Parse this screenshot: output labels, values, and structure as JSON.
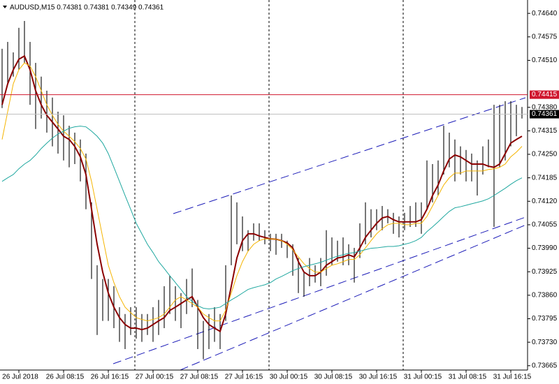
{
  "chart_data": {
    "type": "ohlc",
    "title": "AUDUSD,M15  0.74381 0.74381 0.74349 0.74361",
    "categories": [
      null,
      null,
      null,
      "26 Jul 2018",
      null,
      null,
      null,
      null,
      null,
      null,
      null,
      "26 Jul 08:15",
      null,
      null,
      null,
      null,
      null,
      null,
      null,
      "26 Jul 16:15",
      null,
      null,
      null,
      null,
      null,
      null,
      null,
      "27 Jul 00:15",
      null,
      null,
      null,
      null,
      null,
      null,
      null,
      "27 Jul 08:15",
      null,
      null,
      null,
      null,
      null,
      null,
      null,
      "27 Jul 16:15",
      null,
      null,
      null,
      null,
      null,
      null,
      null,
      "30 Jul 00:15",
      null,
      null,
      null,
      null,
      null,
      null,
      null,
      "30 Jul 08:15",
      null,
      null,
      null,
      null,
      null,
      null,
      null,
      "30 Jul 16:15",
      null,
      null,
      null,
      null,
      null,
      null,
      null,
      "31 Jul 00:15",
      null,
      null,
      null,
      null,
      null,
      null,
      null,
      "31 Jul 08:15",
      null,
      null,
      null,
      null,
      null,
      null,
      null,
      "31 Jul 16:15",
      null,
      null
    ],
    "high": [
      0.74542,
      0.74561,
      0.74532,
      0.746,
      0.74619,
      0.74561,
      0.74503,
      0.74465,
      0.74426,
      0.74407,
      0.74368,
      0.74358,
      0.74329,
      0.7431,
      0.74291,
      0.74252,
      0.74117,
      0.73943,
      0.73905,
      0.73905,
      0.73885,
      0.73827,
      0.73808,
      0.73827,
      0.73827,
      0.73808,
      0.73808,
      0.73827,
      0.73847,
      0.73885,
      0.73914,
      0.73885,
      0.73866,
      0.73905,
      0.73934,
      0.73847,
      0.73789,
      0.73808,
      0.73827,
      0.73808,
      0.73943,
      0.74136,
      0.74117,
      0.74078,
      0.7404,
      0.74059,
      0.74059,
      0.7404,
      0.7403,
      0.7403,
      0.7403,
      0.74011,
      0.74001,
      0.73963,
      0.73924,
      0.73963,
      0.73943,
      0.73963,
      0.7404,
      0.7402,
      0.74011,
      0.7402,
      0.74001,
      0.73991,
      0.74059,
      0.74117,
      0.74098,
      0.74098,
      0.74107,
      0.74098,
      0.74088,
      0.74078,
      0.74088,
      0.74107,
      0.74117,
      0.74117,
      0.74233,
      0.74223,
      0.74233,
      0.74329,
      0.7431,
      0.74291,
      0.74272,
      0.74262,
      0.74252,
      0.74233,
      0.74272,
      0.74291,
      0.74387,
      0.74387,
      0.74397,
      0.74397,
      0.74387,
      0.74381
    ],
    "low": [
      0.74378,
      0.74445,
      0.74465,
      0.74484,
      0.74503,
      0.74387,
      0.7432,
      0.74349,
      0.7431,
      0.74272,
      0.74252,
      0.74233,
      0.74214,
      0.74223,
      0.74175,
      0.74098,
      0.73905,
      0.7375,
      0.73789,
      0.73789,
      0.73769,
      0.73731,
      0.73711,
      0.7375,
      0.7374,
      0.73731,
      0.7375,
      0.73731,
      0.7375,
      0.73769,
      0.73808,
      0.73789,
      0.73769,
      0.73808,
      0.73827,
      0.73711,
      0.73683,
      0.73711,
      0.73731,
      0.73711,
      0.73789,
      0.73943,
      0.74001,
      0.73982,
      0.73982,
      0.74011,
      0.74011,
      0.74001,
      0.73982,
      0.73972,
      0.73991,
      0.73963,
      0.73914,
      0.73866,
      0.73856,
      0.73885,
      0.73895,
      0.73885,
      0.73914,
      0.73943,
      0.73953,
      0.73943,
      0.73943,
      0.73895,
      0.73963,
      0.74001,
      0.7402,
      0.7404,
      0.7404,
      0.74059,
      0.7403,
      0.7402,
      0.7404,
      0.74049,
      0.74049,
      0.7403,
      0.74098,
      0.74117,
      0.74136,
      0.74194,
      0.74214,
      0.74175,
      0.74194,
      0.74175,
      0.74175,
      0.74136,
      0.74194,
      0.74214,
      0.74049,
      0.74214,
      0.74233,
      0.74272,
      0.743,
      0.74349
    ],
    "bar_color": "#1a1a1a",
    "series": [
      {
        "color": "#8b0000",
        "values": [
          0.74387,
          0.74445,
          0.74484,
          0.74513,
          0.74522,
          0.74484,
          0.74426,
          0.74387,
          0.74358,
          0.74339,
          0.7432,
          0.743,
          0.74291,
          0.74272,
          0.74243,
          0.74194,
          0.74098,
          0.74001,
          0.73924,
          0.73866,
          0.73827,
          0.73798,
          0.73779,
          0.73769,
          0.73769,
          0.73765,
          0.73769,
          0.73779,
          0.73789,
          0.73798,
          0.73818,
          0.73827,
          0.73837,
          0.73847,
          0.73856,
          0.73827,
          0.73798,
          0.73779,
          0.73769,
          0.7376,
          0.73808,
          0.73885,
          0.73963,
          0.74011,
          0.7403,
          0.7403,
          0.74024,
          0.7402,
          0.74016,
          0.74015,
          0.74011,
          0.74005,
          0.73991,
          0.73953,
          0.73924,
          0.73914,
          0.73914,
          0.73924,
          0.73943,
          0.73953,
          0.73963,
          0.73966,
          0.73972,
          0.73966,
          0.73991,
          0.7402,
          0.7404,
          0.74059,
          0.74074,
          0.74078,
          0.74069,
          0.74063,
          0.74063,
          0.74063,
          0.74063,
          0.74069,
          0.74098,
          0.74136,
          0.74165,
          0.74204,
          0.74237,
          0.74248,
          0.74243,
          0.74233,
          0.74223,
          0.74223,
          0.74223,
          0.74217,
          0.74214,
          0.74223,
          0.74252,
          0.74281,
          0.74291,
          0.743
        ]
      },
      {
        "color": "#f5b400",
        "values": [
          0.74291,
          0.74368,
          0.74445,
          0.74484,
          0.74503,
          0.74494,
          0.74465,
          0.74426,
          0.74387,
          0.74358,
          0.74333,
          0.74314,
          0.743,
          0.74285,
          0.74266,
          0.74237,
          0.74175,
          0.74098,
          0.7402,
          0.73943,
          0.73895,
          0.73856,
          0.73827,
          0.73812,
          0.73798,
          0.73793,
          0.73789,
          0.73793,
          0.73798,
          0.73808,
          0.73827,
          0.73847,
          0.73856,
          0.73847,
          0.73837,
          0.73827,
          0.73808,
          0.73798,
          0.73789,
          0.73789,
          0.73818,
          0.73866,
          0.73914,
          0.73953,
          0.73982,
          0.74001,
          0.74011,
          0.74016,
          0.74016,
          0.74015,
          0.74011,
          0.74001,
          0.73986,
          0.73966,
          0.73947,
          0.73934,
          0.73924,
          0.73924,
          0.73934,
          0.73943,
          0.73947,
          0.73953,
          0.73959,
          0.73959,
          0.73972,
          0.73991,
          0.74011,
          0.7403,
          0.74044,
          0.74055,
          0.74059,
          0.74059,
          0.74055,
          0.74055,
          0.74059,
          0.74059,
          0.74078,
          0.74107,
          0.74136,
          0.74165,
          0.74185,
          0.74198,
          0.74198,
          0.74204,
          0.74204,
          0.74204,
          0.74204,
          0.74208,
          0.7421,
          0.74214,
          0.74223,
          0.74243,
          0.74256,
          0.74272
        ]
      },
      {
        "color": "#20a8a0",
        "values": [
          0.74175,
          0.74185,
          0.74194,
          0.7421,
          0.74223,
          0.74233,
          0.74248,
          0.74266,
          0.74281,
          0.74295,
          0.74306,
          0.74314,
          0.74322,
          0.74326,
          0.74328,
          0.74326,
          0.74314,
          0.743,
          0.74281,
          0.74252,
          0.74214,
          0.74175,
          0.74136,
          0.74098,
          0.74059,
          0.7403,
          0.74001,
          0.73978,
          0.73953,
          0.73934,
          0.73914,
          0.73895,
          0.73876,
          0.73856,
          0.73843,
          0.73831,
          0.73824,
          0.73822,
          0.73824,
          0.73827,
          0.73837,
          0.73847,
          0.73856,
          0.73866,
          0.73876,
          0.73881,
          0.73885,
          0.73889,
          0.73895,
          0.73905,
          0.73912,
          0.7392,
          0.73928,
          0.73934,
          0.73939,
          0.73943,
          0.73947,
          0.73951,
          0.73957,
          0.73963,
          0.73968,
          0.73972,
          0.73976,
          0.73978,
          0.73982,
          0.73986,
          0.7399,
          0.73991,
          0.73993,
          0.73995,
          0.73995,
          0.73997,
          0.74001,
          0.74005,
          0.74011,
          0.7402,
          0.74036,
          0.74049,
          0.74063,
          0.74078,
          0.74092,
          0.74102,
          0.74105,
          0.74109,
          0.74113,
          0.74117,
          0.74121,
          0.74127,
          0.74136,
          0.74146,
          0.74156,
          0.74167,
          0.74177,
          0.74185
        ]
      }
    ],
    "ylim": [
      0.73653,
      0.74677
    ],
    "yticks": [
      {
        "value": 0.7464,
        "label": "0.74640"
      },
      {
        "value": 0.74575,
        "label": "0.74575"
      },
      {
        "value": 0.7451,
        "label": "0.74510"
      },
      {
        "value": 0.7438,
        "label": "0.74380"
      },
      {
        "value": 0.74315,
        "label": "0.74315"
      },
      {
        "value": 0.7425,
        "label": "0.74250"
      },
      {
        "value": 0.74185,
        "label": "0.74185"
      },
      {
        "value": 0.7412,
        "label": "0.74120"
      },
      {
        "value": 0.74055,
        "label": "0.74055"
      },
      {
        "value": 0.7399,
        "label": "0.73990"
      },
      {
        "value": 0.73925,
        "label": "0.73925"
      },
      {
        "value": 0.7386,
        "label": "0.73860"
      },
      {
        "value": 0.73795,
        "label": "0.73795"
      },
      {
        "value": 0.7373,
        "label": "0.73730"
      },
      {
        "value": 0.73665,
        "label": "0.73665"
      }
    ],
    "hlines": [
      {
        "value": 0.74415,
        "label": "0.74415",
        "color": "#d0162e",
        "tag": "#d0162e"
      },
      {
        "value": 0.74361,
        "label": "0.74361",
        "color": "#c0c0c0",
        "tag": "#000000"
      }
    ]
  }
}
